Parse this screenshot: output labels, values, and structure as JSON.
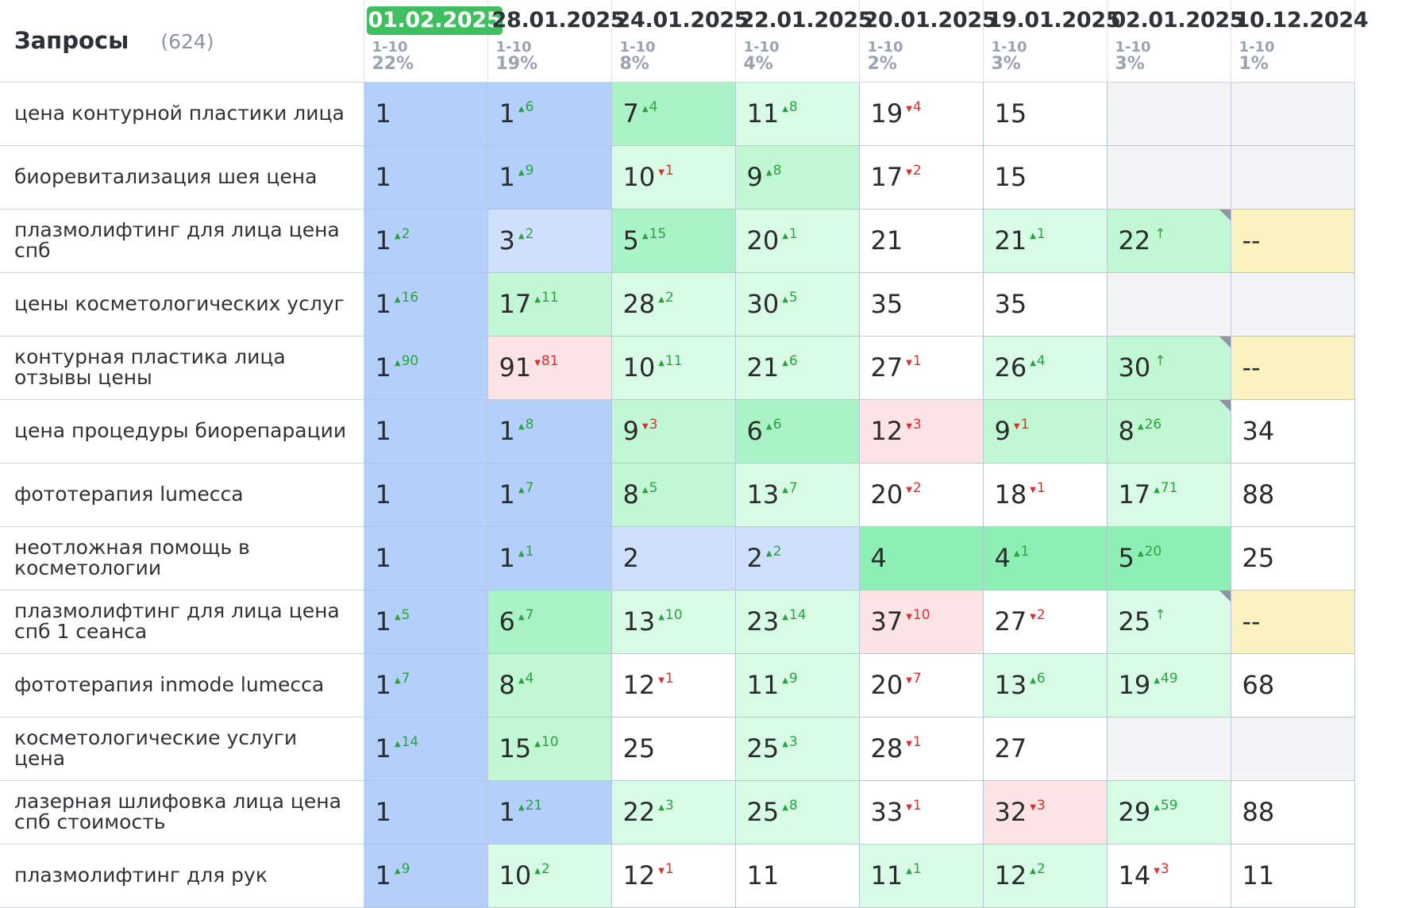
{
  "header": {
    "title": "Запросы",
    "count": "(624)",
    "columns": [
      {
        "date": "01.02.2025",
        "range": "1-10",
        "pct": "22%",
        "active": true
      },
      {
        "date": "28.01.2025",
        "range": "1-10",
        "pct": "19%"
      },
      {
        "date": "24.01.2025",
        "range": "1-10",
        "pct": "8%"
      },
      {
        "date": "22.01.2025",
        "range": "1-10",
        "pct": "4%"
      },
      {
        "date": "20.01.2025",
        "range": "1-10",
        "pct": "2%"
      },
      {
        "date": "19.01.2025",
        "range": "1-10",
        "pct": "3%"
      },
      {
        "date": "02.01.2025",
        "range": "1-10",
        "pct": "3%"
      },
      {
        "date": "10.12.2024",
        "range": "1-10",
        "pct": "1%"
      }
    ]
  },
  "rows": [
    {
      "query": "цена контурной пластики лица",
      "cells": [
        {
          "v": "1",
          "d": "",
          "t": "",
          "bg": "b-top"
        },
        {
          "v": "1",
          "d": "6",
          "t": "up",
          "bg": "b-top"
        },
        {
          "v": "7",
          "d": "4",
          "t": "up",
          "bg": "g3"
        },
        {
          "v": "11",
          "d": "8",
          "t": "up",
          "bg": "g1"
        },
        {
          "v": "19",
          "d": "4",
          "t": "dn",
          "bg": "wh"
        },
        {
          "v": "15",
          "d": "",
          "t": "",
          "bg": "wh"
        },
        {
          "v": "",
          "d": "",
          "t": "",
          "bg": "gray"
        },
        {
          "v": "",
          "d": "",
          "t": "",
          "bg": "gray"
        }
      ]
    },
    {
      "query": "биоревитализация шея цена",
      "cells": [
        {
          "v": "1",
          "d": "",
          "t": "",
          "bg": "b-top"
        },
        {
          "v": "1",
          "d": "9",
          "t": "up",
          "bg": "b-top"
        },
        {
          "v": "10",
          "d": "1",
          "t": "dn",
          "bg": "g1"
        },
        {
          "v": "9",
          "d": "8",
          "t": "up",
          "bg": "g2"
        },
        {
          "v": "17",
          "d": "2",
          "t": "dn",
          "bg": "wh"
        },
        {
          "v": "15",
          "d": "",
          "t": "",
          "bg": "wh"
        },
        {
          "v": "",
          "d": "",
          "t": "",
          "bg": "gray"
        },
        {
          "v": "",
          "d": "",
          "t": "",
          "bg": "gray"
        }
      ]
    },
    {
      "query": "плазмолифтинг для лица цена спб",
      "cells": [
        {
          "v": "1",
          "d": "2",
          "t": "up",
          "bg": "b-top"
        },
        {
          "v": "3",
          "d": "2",
          "t": "up",
          "bg": "b-light"
        },
        {
          "v": "5",
          "d": "15",
          "t": "up",
          "bg": "g3"
        },
        {
          "v": "20",
          "d": "1",
          "t": "up",
          "bg": "g1"
        },
        {
          "v": "21",
          "d": "",
          "t": "",
          "bg": "wh"
        },
        {
          "v": "21",
          "d": "1",
          "t": "up",
          "bg": "g1"
        },
        {
          "v": "22",
          "d": "↑",
          "t": "up",
          "bg": "g2",
          "flag": true
        },
        {
          "v": "--",
          "d": "",
          "t": "",
          "bg": "yel"
        }
      ]
    },
    {
      "query": "цены косметологических услуг",
      "cells": [
        {
          "v": "1",
          "d": "16",
          "t": "up",
          "bg": "b-top"
        },
        {
          "v": "17",
          "d": "11",
          "t": "up",
          "bg": "g2"
        },
        {
          "v": "28",
          "d": "2",
          "t": "up",
          "bg": "g1"
        },
        {
          "v": "30",
          "d": "5",
          "t": "up",
          "bg": "g1"
        },
        {
          "v": "35",
          "d": "",
          "t": "",
          "bg": "wh"
        },
        {
          "v": "35",
          "d": "",
          "t": "",
          "bg": "wh"
        },
        {
          "v": "",
          "d": "",
          "t": "",
          "bg": "gray"
        },
        {
          "v": "",
          "d": "",
          "t": "",
          "bg": "gray"
        }
      ]
    },
    {
      "query": "контурная пластика лица отзывы цены",
      "cells": [
        {
          "v": "1",
          "d": "90",
          "t": "up",
          "bg": "b-top"
        },
        {
          "v": "91",
          "d": "81",
          "t": "dn",
          "bg": "red"
        },
        {
          "v": "10",
          "d": "11",
          "t": "up",
          "bg": "g1"
        },
        {
          "v": "21",
          "d": "6",
          "t": "up",
          "bg": "g1"
        },
        {
          "v": "27",
          "d": "1",
          "t": "dn",
          "bg": "wh"
        },
        {
          "v": "26",
          "d": "4",
          "t": "up",
          "bg": "g1"
        },
        {
          "v": "30",
          "d": "↑",
          "t": "up",
          "bg": "g2",
          "flag": true
        },
        {
          "v": "--",
          "d": "",
          "t": "",
          "bg": "yel"
        }
      ]
    },
    {
      "query": "цена процедуры биорепарации",
      "cells": [
        {
          "v": "1",
          "d": "",
          "t": "",
          "bg": "b-top"
        },
        {
          "v": "1",
          "d": "8",
          "t": "up",
          "bg": "b-top"
        },
        {
          "v": "9",
          "d": "3",
          "t": "dn",
          "bg": "g2"
        },
        {
          "v": "6",
          "d": "6",
          "t": "up",
          "bg": "g3"
        },
        {
          "v": "12",
          "d": "3",
          "t": "dn",
          "bg": "red"
        },
        {
          "v": "9",
          "d": "1",
          "t": "dn",
          "bg": "g2"
        },
        {
          "v": "8",
          "d": "26",
          "t": "up",
          "bg": "g2",
          "flag": true
        },
        {
          "v": "34",
          "d": "",
          "t": "",
          "bg": "wh"
        }
      ]
    },
    {
      "query": "фототерапия lumecca",
      "cells": [
        {
          "v": "1",
          "d": "",
          "t": "",
          "bg": "b-top"
        },
        {
          "v": "1",
          "d": "7",
          "t": "up",
          "bg": "b-top"
        },
        {
          "v": "8",
          "d": "5",
          "t": "up",
          "bg": "g2"
        },
        {
          "v": "13",
          "d": "7",
          "t": "up",
          "bg": "g1"
        },
        {
          "v": "20",
          "d": "2",
          "t": "dn",
          "bg": "wh"
        },
        {
          "v": "18",
          "d": "1",
          "t": "dn",
          "bg": "wh"
        },
        {
          "v": "17",
          "d": "71",
          "t": "up",
          "bg": "g1"
        },
        {
          "v": "88",
          "d": "",
          "t": "",
          "bg": "wh"
        }
      ]
    },
    {
      "query": "неотложная помощь в косметологии",
      "cells": [
        {
          "v": "1",
          "d": "",
          "t": "",
          "bg": "b-top"
        },
        {
          "v": "1",
          "d": "1",
          "t": "up",
          "bg": "b-top"
        },
        {
          "v": "2",
          "d": "",
          "t": "",
          "bg": "b-light"
        },
        {
          "v": "2",
          "d": "2",
          "t": "up",
          "bg": "b-light"
        },
        {
          "v": "4",
          "d": "",
          "t": "",
          "bg": "g4"
        },
        {
          "v": "4",
          "d": "1",
          "t": "up",
          "bg": "g4"
        },
        {
          "v": "5",
          "d": "20",
          "t": "up",
          "bg": "g4"
        },
        {
          "v": "25",
          "d": "",
          "t": "",
          "bg": "wh"
        }
      ]
    },
    {
      "query": "плазмолифтинг для лица цена спб 1 сеанса",
      "cells": [
        {
          "v": "1",
          "d": "5",
          "t": "up",
          "bg": "b-top"
        },
        {
          "v": "6",
          "d": "7",
          "t": "up",
          "bg": "g3"
        },
        {
          "v": "13",
          "d": "10",
          "t": "up",
          "bg": "g1"
        },
        {
          "v": "23",
          "d": "14",
          "t": "up",
          "bg": "g1"
        },
        {
          "v": "37",
          "d": "10",
          "t": "dn",
          "bg": "red"
        },
        {
          "v": "27",
          "d": "2",
          "t": "dn",
          "bg": "wh"
        },
        {
          "v": "25",
          "d": "↑",
          "t": "up",
          "bg": "g1",
          "flag": true
        },
        {
          "v": "--",
          "d": "",
          "t": "",
          "bg": "yel"
        }
      ]
    },
    {
      "query": "фототерапия inmode lumecca",
      "cells": [
        {
          "v": "1",
          "d": "7",
          "t": "up",
          "bg": "b-top"
        },
        {
          "v": "8",
          "d": "4",
          "t": "up",
          "bg": "g2"
        },
        {
          "v": "12",
          "d": "1",
          "t": "dn",
          "bg": "wh"
        },
        {
          "v": "11",
          "d": "9",
          "t": "up",
          "bg": "g1"
        },
        {
          "v": "20",
          "d": "7",
          "t": "dn",
          "bg": "wh"
        },
        {
          "v": "13",
          "d": "6",
          "t": "up",
          "bg": "g1"
        },
        {
          "v": "19",
          "d": "49",
          "t": "up",
          "bg": "g1"
        },
        {
          "v": "68",
          "d": "",
          "t": "",
          "bg": "wh"
        }
      ]
    },
    {
      "query": "косметологические услуги цена",
      "cells": [
        {
          "v": "1",
          "d": "14",
          "t": "up",
          "bg": "b-top"
        },
        {
          "v": "15",
          "d": "10",
          "t": "up",
          "bg": "g2"
        },
        {
          "v": "25",
          "d": "",
          "t": "",
          "bg": "wh"
        },
        {
          "v": "25",
          "d": "3",
          "t": "up",
          "bg": "g1"
        },
        {
          "v": "28",
          "d": "1",
          "t": "dn",
          "bg": "wh"
        },
        {
          "v": "27",
          "d": "",
          "t": "",
          "bg": "wh"
        },
        {
          "v": "",
          "d": "",
          "t": "",
          "bg": "gray"
        },
        {
          "v": "",
          "d": "",
          "t": "",
          "bg": "gray"
        }
      ]
    },
    {
      "query": "лазерная шлифовка лица цена спб стоимость",
      "cells": [
        {
          "v": "1",
          "d": "",
          "t": "",
          "bg": "b-top"
        },
        {
          "v": "1",
          "d": "21",
          "t": "up",
          "bg": "b-top"
        },
        {
          "v": "22",
          "d": "3",
          "t": "up",
          "bg": "g1"
        },
        {
          "v": "25",
          "d": "8",
          "t": "up",
          "bg": "g1"
        },
        {
          "v": "33",
          "d": "1",
          "t": "dn",
          "bg": "wh"
        },
        {
          "v": "32",
          "d": "3",
          "t": "dn",
          "bg": "red"
        },
        {
          "v": "29",
          "d": "59",
          "t": "up",
          "bg": "g1"
        },
        {
          "v": "88",
          "d": "",
          "t": "",
          "bg": "wh"
        }
      ]
    },
    {
      "query": "плазмолифтинг для рук",
      "cells": [
        {
          "v": "1",
          "d": "9",
          "t": "up",
          "bg": "b-top"
        },
        {
          "v": "10",
          "d": "2",
          "t": "up",
          "bg": "g1"
        },
        {
          "v": "12",
          "d": "1",
          "t": "dn",
          "bg": "wh"
        },
        {
          "v": "11",
          "d": "",
          "t": "",
          "bg": "wh"
        },
        {
          "v": "11",
          "d": "1",
          "t": "up",
          "bg": "g1"
        },
        {
          "v": "12",
          "d": "2",
          "t": "up",
          "bg": "g1"
        },
        {
          "v": "14",
          "d": "3",
          "t": "dn",
          "bg": "wh"
        },
        {
          "v": "11",
          "d": "",
          "t": "",
          "bg": "wh"
        }
      ]
    }
  ]
}
